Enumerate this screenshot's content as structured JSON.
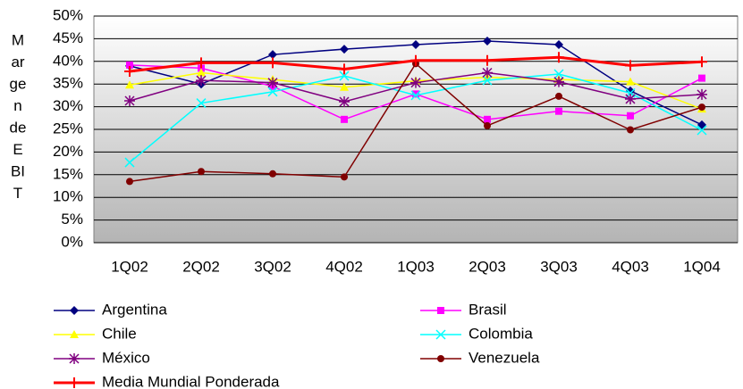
{
  "chart_data": {
    "type": "line",
    "y_label_lines": [
      "M",
      "ar",
      "ge",
      "n",
      "de",
      "E",
      "BI",
      "T"
    ],
    "categories": [
      "1Q02",
      "2Q02",
      "3Q02",
      "4Q02",
      "1Q03",
      "2Q03",
      "3Q03",
      "4Q03",
      "1Q04"
    ],
    "ylim": [
      0,
      50
    ],
    "yticks": [
      {
        "value": 0,
        "label": "0%"
      },
      {
        "value": 5,
        "label": "5%"
      },
      {
        "value": 10,
        "label": "10%"
      },
      {
        "value": 15,
        "label": "15%"
      },
      {
        "value": 20,
        "label": "20%"
      },
      {
        "value": 25,
        "label": "25%"
      },
      {
        "value": 30,
        "label": "30%"
      },
      {
        "value": 35,
        "label": "35%"
      },
      {
        "value": 40,
        "label": "40%"
      },
      {
        "value": 45,
        "label": "45%"
      },
      {
        "value": 50,
        "label": "50%"
      }
    ],
    "grid": true,
    "series": [
      {
        "name": "Argentina",
        "color": "#000080",
        "marker": "diamond",
        "values": [
          39,
          35,
          41.5,
          42.7,
          43.7,
          44.5,
          43.7,
          33.5,
          26
        ]
      },
      {
        "name": "Brasil",
        "color": "#ff00ff",
        "marker": "square",
        "values": [
          39.2,
          38.5,
          34.5,
          27.2,
          32.8,
          27.2,
          29,
          28,
          36.3
        ]
      },
      {
        "name": "Chile",
        "color": "#ffff00",
        "marker": "triangle",
        "values": [
          34.8,
          37.5,
          36,
          34.3,
          35.7,
          36.5,
          36,
          35.5,
          29.5
        ]
      },
      {
        "name": "Colombia",
        "color": "#00ffff",
        "marker": "x",
        "values": [
          17.7,
          30.8,
          33.3,
          36.8,
          32.5,
          35.8,
          37.2,
          33,
          24.8
        ]
      },
      {
        "name": "México",
        "color": "#800080",
        "marker": "star",
        "values": [
          31.3,
          35.8,
          35.3,
          31.1,
          35.3,
          37.5,
          35.5,
          31.7,
          32.7
        ]
      },
      {
        "name": "Venezuela",
        "color": "#800000",
        "marker": "circle",
        "values": [
          13.5,
          15.7,
          15.2,
          14.5,
          39.5,
          25.8,
          32.3,
          24.9,
          29.9
        ]
      },
      {
        "name": "Media Mundial Ponderada",
        "color": "#ff0000",
        "marker": "plus",
        "width": 3,
        "values": [
          37.8,
          39.7,
          39.7,
          38.3,
          40.2,
          40.2,
          40.9,
          39.1,
          39.9
        ]
      }
    ]
  }
}
